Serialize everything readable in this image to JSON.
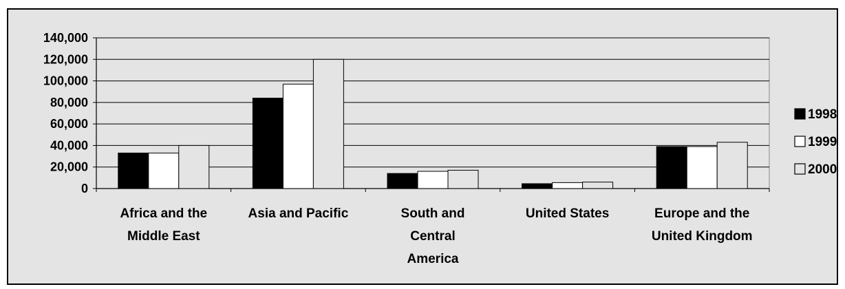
{
  "chart_data": {
    "type": "bar",
    "categories": [
      [
        "Africa and the",
        "Middle East"
      ],
      [
        "Asia and Pacific"
      ],
      [
        "South and",
        "Central",
        "America"
      ],
      [
        "United States"
      ],
      [
        "Europe and the",
        "United Kingdom"
      ]
    ],
    "series": [
      {
        "name": "1998",
        "values": [
          33000,
          84000,
          14000,
          4500,
          39000
        ],
        "color": "#000000"
      },
      {
        "name": "1999",
        "values": [
          33000,
          97000,
          16000,
          5500,
          39000
        ],
        "color": "#ffffff"
      },
      {
        "name": "2000",
        "values": [
          40000,
          120000,
          17000,
          6000,
          43000
        ],
        "color": "#e4e4e4"
      }
    ],
    "ylim": [
      0,
      140000
    ],
    "yticks": [
      {
        "value": 0,
        "label": "0"
      },
      {
        "value": 20000,
        "label": "20,000"
      },
      {
        "value": 40000,
        "label": "40,000"
      },
      {
        "value": 60000,
        "label": "60,000"
      },
      {
        "value": 80000,
        "label": "80,000"
      },
      {
        "value": 100000,
        "label": "100,000"
      },
      {
        "value": 120000,
        "label": "120,000"
      },
      {
        "value": 140000,
        "label": "140,000"
      }
    ],
    "grid": true,
    "legend_position": "right",
    "plot_background": "#e4e4e4"
  }
}
